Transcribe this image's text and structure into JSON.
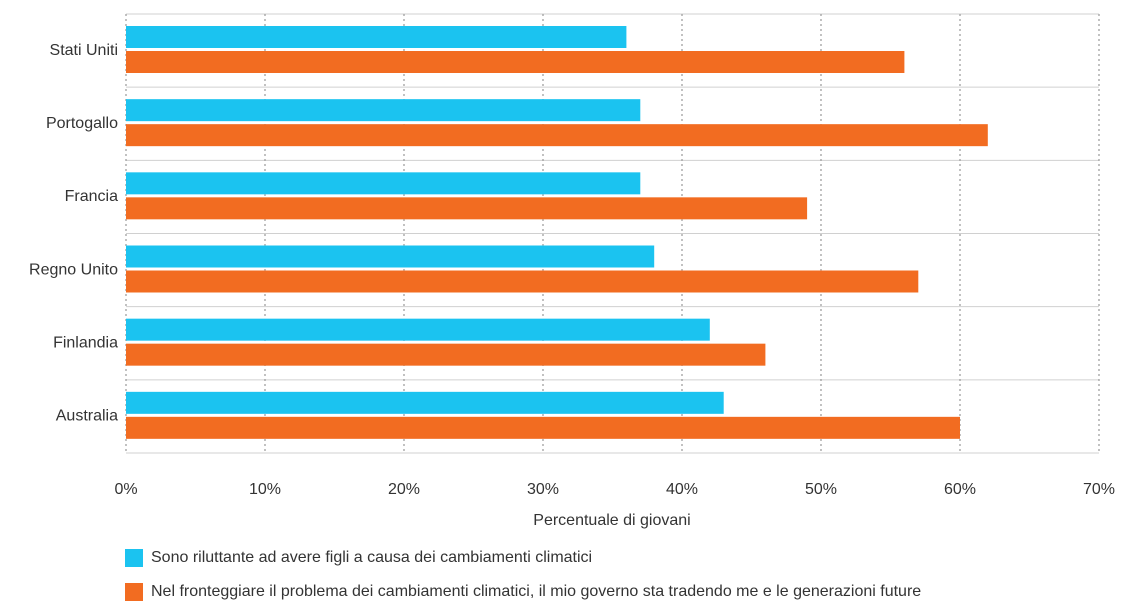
{
  "chart_data": {
    "type": "barh",
    "categories": [
      "Stati Uniti",
      "Portogallo",
      "Francia",
      "Regno Unito",
      "Finlandia",
      "Australia"
    ],
    "series": [
      {
        "name": "Sono riluttante ad avere figli a causa dei cambiamenti climatici",
        "color": "#1bc3f0",
        "values": [
          36,
          37,
          37,
          38,
          42,
          43
        ]
      },
      {
        "name": "Nel fronteggiare il problema dei cambiamenti climatici, il mio governo sta tradendo me e le generazioni future",
        "color": "#f26c21",
        "values": [
          56,
          62,
          49,
          57,
          46,
          60
        ]
      }
    ],
    "xlabel": "Percentuale di giovani",
    "xlim": [
      0,
      70
    ],
    "xticks": [
      {
        "value": 0,
        "label": "0%"
      },
      {
        "value": 10,
        "label": "10%"
      },
      {
        "value": 20,
        "label": "20%"
      },
      {
        "value": 30,
        "label": "30%"
      },
      {
        "value": 40,
        "label": "40%"
      },
      {
        "value": 50,
        "label": "50%"
      },
      {
        "value": 60,
        "label": "60%"
      },
      {
        "value": 70,
        "label": "70%"
      }
    ],
    "grid": true,
    "legend": "bottom"
  }
}
